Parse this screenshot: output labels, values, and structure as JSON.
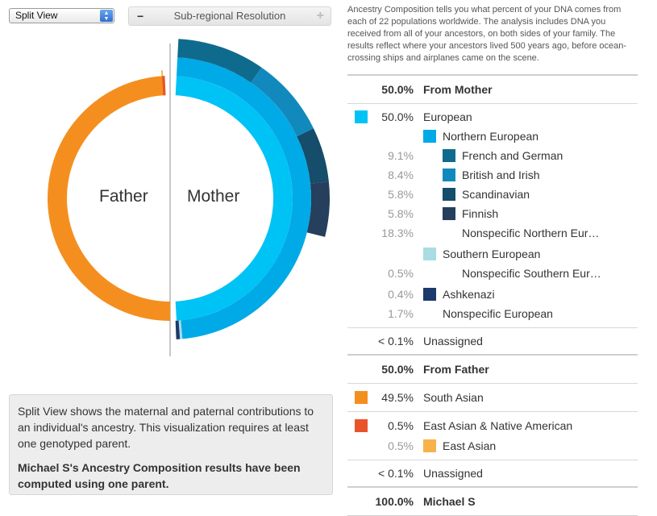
{
  "controls": {
    "view_select": "Split View",
    "resolution_label": "Sub-regional Resolution",
    "minus": "−",
    "plus": "+"
  },
  "chart": {
    "father_label": "Father",
    "mother_label": "Mother",
    "colors": {
      "father_south_asian": "#f48f1f",
      "father_east_asian_native": "#e8532a",
      "father_east_asian": "#f7b34a",
      "mother_european": "#00c3f5",
      "mother_northern_european": "#00aae6",
      "mother_french_german": "#0f6b8e",
      "mother_british_irish": "#1289bd",
      "mother_scandinavian": "#154d6a",
      "mother_finnish": "#253f5c",
      "mother_southern_european": "#a9dce3",
      "mother_ashkenazi": "#1c3a6b"
    }
  },
  "info": {
    "text": "Split View shows the maternal and paternal contributions to an individual's ancestry. This visualization requires at least one genotyped parent.",
    "bold": "Michael S's Ancestry Composition results have been computed using one parent."
  },
  "description": "Ancestry Composition tells you what percent of your DNA comes from each of 22 populations worldwide. The analysis includes DNA you received from all of your ancestors, on both sides of your family. The results reflect where your ancestors lived 500 years ago, before ocean-crossing ships and airplanes came on the scene.",
  "table": {
    "from_mother": {
      "pct": "50.0%",
      "label": "From Mother"
    },
    "european": {
      "pct": "50.0%",
      "label": "European",
      "color": "#00c3f5"
    },
    "northern_european": {
      "label": "Northern European",
      "color": "#00aae6"
    },
    "french_german": {
      "pct": "9.1%",
      "label": "French and German",
      "color": "#0f6b8e"
    },
    "british_irish": {
      "pct": "8.4%",
      "label": "British and Irish",
      "color": "#1289bd"
    },
    "scandinavian": {
      "pct": "5.8%",
      "label": "Scandinavian",
      "color": "#154d6a"
    },
    "finnish": {
      "pct": "5.8%",
      "label": "Finnish",
      "color": "#253f5c"
    },
    "nonspecific_northern": {
      "pct": "18.3%",
      "label": "Nonspecific Northern Eur…"
    },
    "southern_european": {
      "label": "Southern European",
      "color": "#a9dce3"
    },
    "nonspecific_southern": {
      "pct": "0.5%",
      "label": "Nonspecific Southern Eur…"
    },
    "ashkenazi": {
      "pct": "0.4%",
      "label": "Ashkenazi",
      "color": "#1c3a6b"
    },
    "nonspecific_european": {
      "pct": "1.7%",
      "label": "Nonspecific European"
    },
    "unassigned_mother": {
      "pct": "< 0.1%",
      "label": "Unassigned"
    },
    "from_father": {
      "pct": "50.0%",
      "label": "From Father"
    },
    "south_asian": {
      "pct": "49.5%",
      "label": "South Asian",
      "color": "#f48f1f"
    },
    "east_asian_native": {
      "pct": "0.5%",
      "label": "East Asian & Native American",
      "color": "#e8532a"
    },
    "east_asian": {
      "pct": "0.5%",
      "label": "East Asian",
      "color": "#f7b34a"
    },
    "unassigned_father": {
      "pct": "< 0.1%",
      "label": "Unassigned"
    },
    "total": {
      "pct": "100.0%",
      "label": "Michael S"
    }
  }
}
